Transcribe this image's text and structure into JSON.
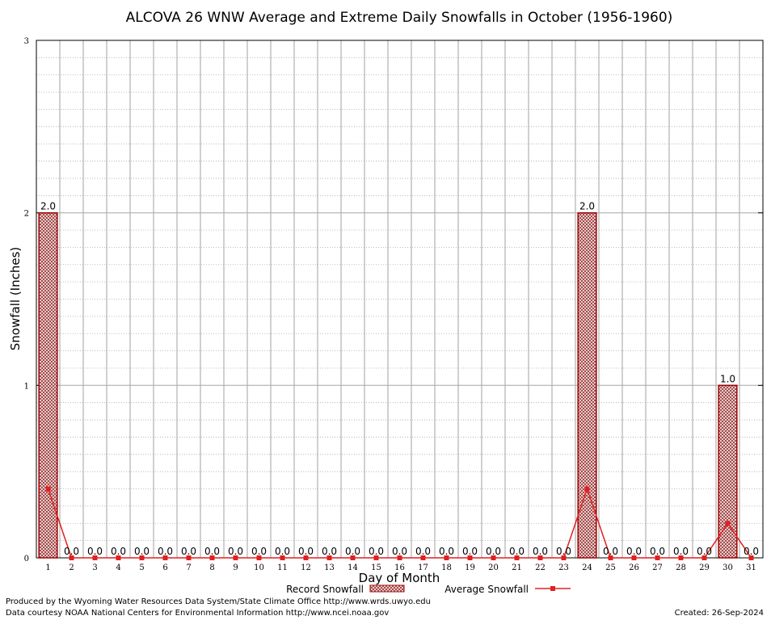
{
  "chart_data": {
    "type": "bar",
    "title": "ALCOVA 26 WNW Average and Extreme Daily Snowfalls in October (1956-1960)",
    "xlabel": "Day of Month",
    "ylabel": "Snowfall (Inches)",
    "ylim": [
      0,
      3
    ],
    "yticks": [
      "0",
      "1",
      "2",
      "3"
    ],
    "categories": [
      "1",
      "2",
      "3",
      "4",
      "5",
      "6",
      "7",
      "8",
      "9",
      "10",
      "11",
      "12",
      "13",
      "14",
      "15",
      "16",
      "17",
      "18",
      "19",
      "20",
      "21",
      "22",
      "23",
      "24",
      "25",
      "26",
      "27",
      "28",
      "29",
      "30",
      "31"
    ],
    "series": [
      {
        "name": "Record Snowfall",
        "kind": "bar",
        "values": [
          2.0,
          0.0,
          0.0,
          0.0,
          0.0,
          0.0,
          0.0,
          0.0,
          0.0,
          0.0,
          0.0,
          0.0,
          0.0,
          0.0,
          0.0,
          0.0,
          0.0,
          0.0,
          0.0,
          0.0,
          0.0,
          0.0,
          0.0,
          2.0,
          0.0,
          0.0,
          0.0,
          0.0,
          0.0,
          1.0,
          0.0
        ],
        "labels": [
          "2.0",
          "0.0",
          "0.0",
          "0.0",
          "0.0",
          "0.0",
          "0.0",
          "0.0",
          "0.0",
          "0.0",
          "0.0",
          "0.0",
          "0.0",
          "0.0",
          "0.0",
          "0.0",
          "0.0",
          "0.0",
          "0.0",
          "0.0",
          "0.0",
          "0.0",
          "0.0",
          "2.0",
          "0.0",
          "0.0",
          "0.0",
          "0.0",
          "0.0",
          "1.0",
          "0.0"
        ]
      },
      {
        "name": "Average Snowfall",
        "kind": "line",
        "values": [
          0.4,
          0.0,
          0.0,
          0.0,
          0.0,
          0.0,
          0.0,
          0.0,
          0.0,
          0.0,
          0.0,
          0.0,
          0.0,
          0.0,
          0.0,
          0.0,
          0.0,
          0.0,
          0.0,
          0.0,
          0.0,
          0.0,
          0.0,
          0.4,
          0.0,
          0.0,
          0.0,
          0.0,
          0.0,
          0.2,
          0.0
        ]
      }
    ],
    "grid": true,
    "legend_position": "bottom-center",
    "colors": {
      "bar_fill": "#a05050",
      "bar_stroke": "#a00000",
      "line": "#e02020"
    }
  },
  "footer": {
    "line1": "Produced by the Wyoming Water Resources Data System/State Climate Office http://www.wrds.uwyo.edu",
    "line2": "Data courtesy NOAA National Centers for Environmental Information http://www.ncei.noaa.gov",
    "created": "Created:  26-Sep-2024"
  }
}
